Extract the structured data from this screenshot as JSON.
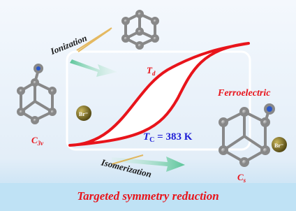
{
  "labels": {
    "ionization": "Ionization",
    "td": {
      "main": "T",
      "sub": "d"
    },
    "c3v": {
      "main": "C",
      "sub": "3v"
    },
    "br_left": "Br⁻",
    "ferroelectric": "Ferroelectric",
    "tc": {
      "main": "T",
      "sub": "C",
      "rest": " = 383 K"
    },
    "isomerization": "Isomerization",
    "cs": {
      "main": "C",
      "sub": "s"
    },
    "br_right": "Br⁻",
    "title": "Targeted symmetry reduction"
  }
}
